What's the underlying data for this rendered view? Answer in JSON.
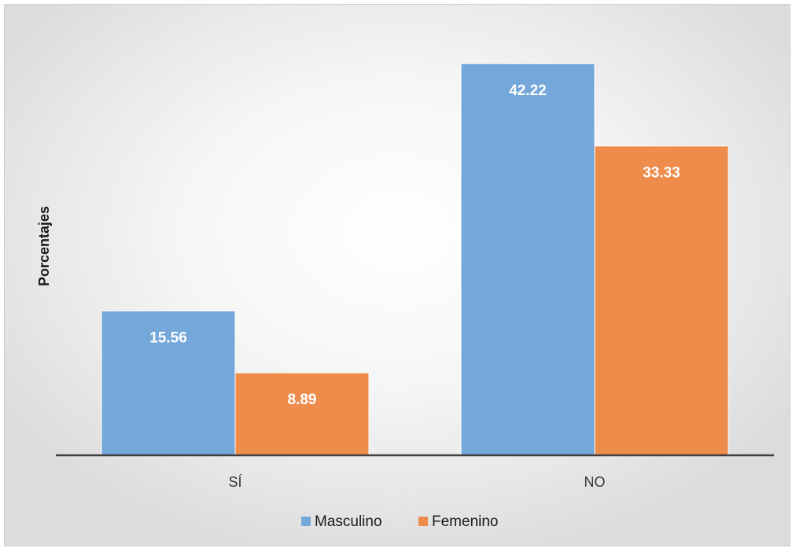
{
  "chart_data": {
    "type": "bar",
    "title": "",
    "xlabel": "",
    "ylabel": "Porcentajes",
    "categories": [
      "SÍ",
      "NO"
    ],
    "series": [
      {
        "name": "Masculino",
        "values": [
          15.56,
          42.22
        ],
        "color": "#74a8da"
      },
      {
        "name": "Femenino",
        "values": [
          8.89,
          33.33
        ],
        "color": "#ee8c4c"
      }
    ],
    "ylim": [
      0,
      45
    ],
    "grid": false,
    "legend": "bottom",
    "data_labels": true,
    "data_label_color": "#ffffff",
    "axis_color": "#404040",
    "background": "radial gradient light gray"
  }
}
